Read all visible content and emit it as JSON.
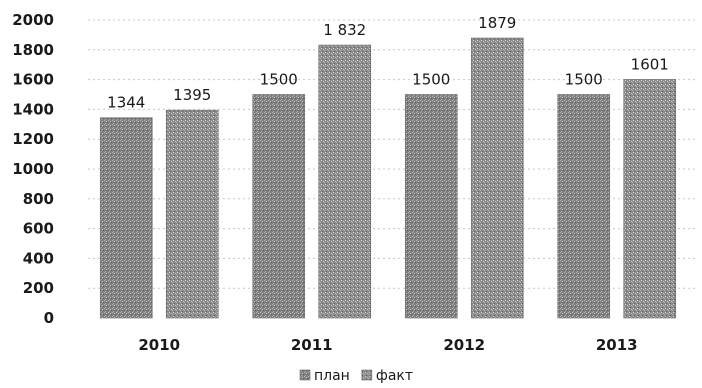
{
  "chart_data": {
    "type": "bar",
    "categories": [
      "2010",
      "2011",
      "2012",
      "2013"
    ],
    "series": [
      {
        "name": "план",
        "values": [
          1344,
          1500,
          1500,
          1500
        ],
        "labels": [
          "1344",
          "1500",
          "1500",
          "1500"
        ],
        "color": "#8c8c8c"
      },
      {
        "name": "факт",
        "values": [
          1395,
          1832,
          1879,
          1601
        ],
        "labels": [
          "1395",
          "1 832",
          "1879",
          "1601"
        ],
        "color": "#9a9a9a"
      }
    ],
    "yticks": [
      "0",
      "200",
      "400",
      "600",
      "800",
      "1000",
      "1200",
      "1400",
      "1600",
      "1800",
      "2000"
    ],
    "ylim": [
      0,
      2000
    ],
    "grid": true,
    "legend": "bottom-center",
    "title": "",
    "xlabel": "",
    "ylabel": ""
  }
}
